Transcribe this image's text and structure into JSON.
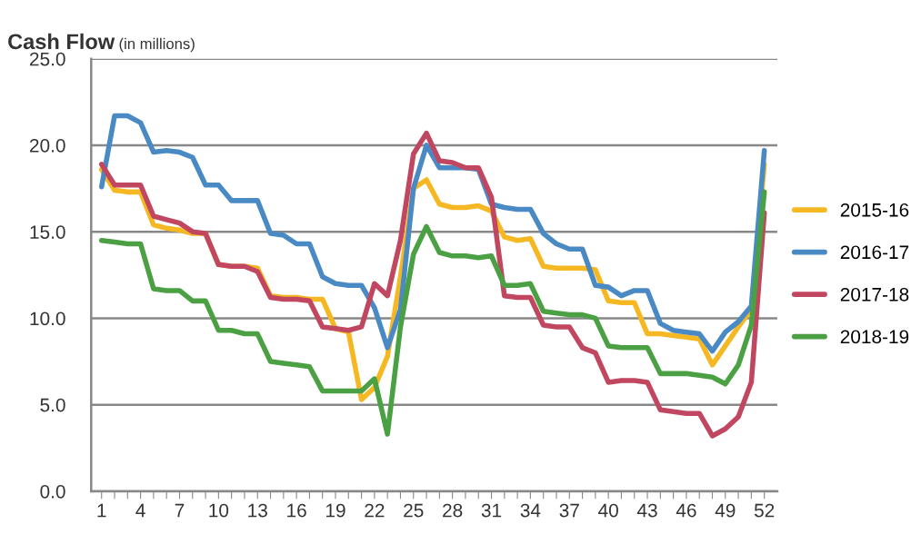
{
  "chart_data": {
    "type": "line",
    "title": "Cash Flow",
    "subtitle": "(in millions)",
    "x": [
      1,
      2,
      3,
      4,
      5,
      6,
      7,
      8,
      9,
      10,
      11,
      12,
      13,
      14,
      15,
      16,
      17,
      18,
      19,
      20,
      21,
      22,
      23,
      24,
      25,
      26,
      27,
      28,
      29,
      30,
      31,
      32,
      33,
      34,
      35,
      36,
      37,
      38,
      39,
      40,
      41,
      42,
      43,
      44,
      45,
      46,
      47,
      48,
      49,
      50,
      51,
      52
    ],
    "xlim": [
      0.2,
      53
    ],
    "xticks": [
      1,
      {
        "value": 2,
        "label": null
      },
      {
        "value": 3,
        "label": null
      },
      4,
      {
        "value": 5,
        "label": null
      },
      {
        "value": 6,
        "label": null
      },
      7,
      {
        "value": 8,
        "label": null
      },
      {
        "value": 9,
        "label": null
      },
      10,
      {
        "value": 11,
        "label": null
      },
      {
        "value": 12,
        "label": null
      },
      13,
      {
        "value": 14,
        "label": null
      },
      {
        "value": 15,
        "label": null
      },
      16,
      {
        "value": 17,
        "label": null
      },
      {
        "value": 18,
        "label": null
      },
      19,
      {
        "value": 20,
        "label": null
      },
      {
        "value": 21,
        "label": null
      },
      22,
      {
        "value": 23,
        "label": null
      },
      {
        "value": 24,
        "label": null
      },
      25,
      {
        "value": 26,
        "label": null
      },
      {
        "value": 27,
        "label": null
      },
      28,
      {
        "value": 29,
        "label": null
      },
      {
        "value": 30,
        "label": null
      },
      31,
      {
        "value": 32,
        "label": null
      },
      {
        "value": 33,
        "label": null
      },
      34,
      {
        "value": 35,
        "label": null
      },
      {
        "value": 36,
        "label": null
      },
      37,
      {
        "value": 38,
        "label": null
      },
      {
        "value": 39,
        "label": null
      },
      40,
      {
        "value": 41,
        "label": null
      },
      {
        "value": 42,
        "label": null
      },
      43,
      {
        "value": 44,
        "label": null
      },
      {
        "value": 45,
        "label": null
      },
      46,
      {
        "value": 47,
        "label": null
      },
      {
        "value": 48,
        "label": null
      },
      49,
      {
        "value": 50,
        "label": null
      },
      {
        "value": 51,
        "label": null
      },
      52
    ],
    "ylim": [
      0,
      25
    ],
    "yticks": [
      {
        "value": 0,
        "label": "0.0"
      },
      {
        "value": 5,
        "label": "5.0"
      },
      {
        "value": 10,
        "label": "10.0"
      },
      {
        "value": 15,
        "label": "15.0"
      },
      {
        "value": 20,
        "label": "20.0"
      },
      {
        "value": 25,
        "label": "25.0"
      }
    ],
    "grid": "y",
    "legend": "right",
    "marker": "none",
    "line_style": "solid",
    "series": [
      {
        "name": "2015-16",
        "color": "#f5b822",
        "values": [
          18.6,
          17.4,
          17.3,
          17.3,
          15.4,
          15.2,
          15.1,
          14.9,
          14.9,
          13.1,
          13.0,
          13.0,
          12.9,
          11.3,
          11.2,
          11.2,
          11.1,
          11.1,
          9.4,
          9.2,
          5.3,
          6.0,
          7.8,
          12.4,
          17.5,
          18.0,
          16.6,
          16.4,
          16.4,
          16.5,
          16.2,
          14.7,
          14.5,
          14.6,
          13.0,
          12.9,
          12.9,
          12.9,
          12.8,
          11.0,
          10.9,
          10.9,
          9.1,
          9.1,
          9.0,
          8.9,
          8.8,
          7.3,
          8.4,
          9.5,
          10.5,
          18.9
        ]
      },
      {
        "name": "2016-17",
        "color": "#4a8ac4",
        "values": [
          17.6,
          21.7,
          21.7,
          21.3,
          19.6,
          19.7,
          19.6,
          19.3,
          17.7,
          17.7,
          16.8,
          16.8,
          16.8,
          14.9,
          14.8,
          14.3,
          14.3,
          12.4,
          12.0,
          11.9,
          11.9,
          10.6,
          8.3,
          10.5,
          17.5,
          20.0,
          18.7,
          18.7,
          18.7,
          18.6,
          16.6,
          16.4,
          16.3,
          16.3,
          14.9,
          14.3,
          14.0,
          14.0,
          11.9,
          11.8,
          11.3,
          11.6,
          11.6,
          9.7,
          9.3,
          9.2,
          9.1,
          8.1,
          9.2,
          9.8,
          10.7,
          19.7
        ]
      },
      {
        "name": "2017-18",
        "color": "#c0475f",
        "values": [
          18.9,
          17.7,
          17.7,
          17.7,
          15.9,
          15.7,
          15.5,
          15.0,
          14.9,
          13.1,
          13.0,
          13.0,
          12.7,
          11.2,
          11.1,
          11.1,
          11.0,
          9.5,
          9.4,
          9.3,
          9.5,
          12.0,
          11.3,
          14.5,
          19.5,
          20.7,
          19.1,
          19.0,
          18.7,
          18.7,
          17.0,
          11.3,
          11.2,
          11.2,
          9.6,
          9.5,
          9.5,
          8.3,
          8.0,
          6.3,
          6.4,
          6.4,
          6.3,
          4.7,
          4.6,
          4.5,
          4.5,
          3.2,
          3.6,
          4.3,
          6.3,
          16.1
        ]
      },
      {
        "name": "2018-19",
        "color": "#4aa042",
        "values": [
          14.5,
          14.4,
          14.3,
          14.3,
          11.7,
          11.6,
          11.6,
          11.0,
          11.0,
          9.3,
          9.3,
          9.1,
          9.1,
          7.5,
          7.4,
          7.3,
          7.2,
          5.8,
          5.8,
          5.8,
          5.8,
          6.5,
          3.3,
          9.5,
          13.7,
          15.3,
          13.8,
          13.6,
          13.6,
          13.5,
          13.6,
          11.9,
          11.9,
          12.0,
          10.4,
          10.3,
          10.2,
          10.2,
          10.0,
          8.4,
          8.3,
          8.3,
          8.3,
          6.8,
          6.8,
          6.8,
          6.7,
          6.6,
          6.2,
          7.3,
          9.6,
          17.3
        ]
      }
    ]
  }
}
